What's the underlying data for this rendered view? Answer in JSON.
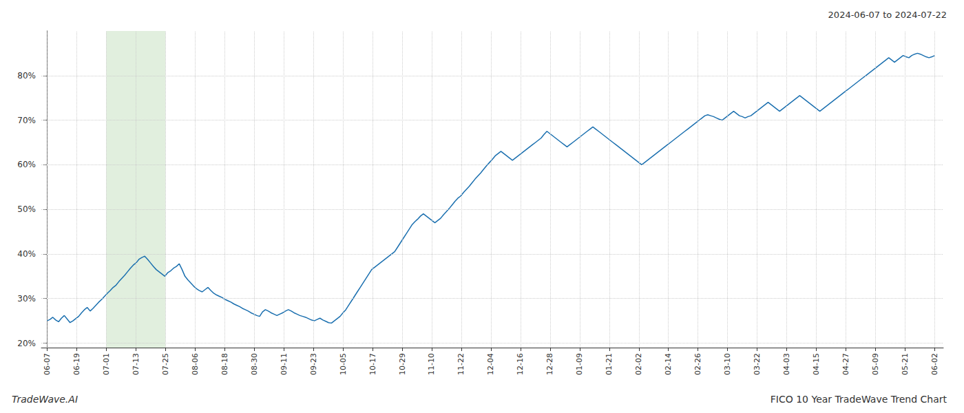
{
  "chart_data": {
    "type": "line",
    "title": "FICO 10 Year TradeWave Trend Chart",
    "subtitle": "2024-06-07 to 2024-07-22",
    "annotations": [
      "TradeWave.AI"
    ],
    "color": "#1a6faf",
    "grid": true,
    "highlight": {
      "start": 20.6,
      "end": 41.2,
      "color": "#d4e8d0"
    },
    "xlim": [
      -2,
      312
    ],
    "xticks": [
      {
        "value": 0,
        "label": "06-07"
      },
      {
        "value": 10.3,
        "label": "06-19"
      },
      {
        "value": 20.6,
        "label": "07-01"
      },
      {
        "value": 30.9,
        "label": "07-13"
      },
      {
        "value": 41.2,
        "label": "07-25"
      },
      {
        "value": 51.5,
        "label": "08-06"
      },
      {
        "value": 61.8,
        "label": "08-18"
      },
      {
        "value": 72.1,
        "label": "08-30"
      },
      {
        "value": 82.4,
        "label": "09-11"
      },
      {
        "value": 92.7,
        "label": "09-23"
      },
      {
        "value": 103,
        "label": "10-05"
      },
      {
        "value": 113.3,
        "label": "10-17"
      },
      {
        "value": 123.6,
        "label": "10-29"
      },
      {
        "value": 133.9,
        "label": "11-10"
      },
      {
        "value": 144.2,
        "label": "11-22"
      },
      {
        "value": 154.5,
        "label": "12-04"
      },
      {
        "value": 164.8,
        "label": "12-16"
      },
      {
        "value": 175.1,
        "label": "12-28"
      },
      {
        "value": 185.4,
        "label": "01-09"
      },
      {
        "value": 195.7,
        "label": "01-21"
      },
      {
        "value": 206,
        "label": "02-02"
      },
      {
        "value": 216.3,
        "label": "02-14"
      },
      {
        "value": 226.6,
        "label": "02-26"
      },
      {
        "value": 236.9,
        "label": "03-10"
      },
      {
        "value": 247.2,
        "label": "03-22"
      },
      {
        "value": 257.5,
        "label": "04-03"
      },
      {
        "value": 267.8,
        "label": "04-15"
      },
      {
        "value": 278.1,
        "label": "04-27"
      },
      {
        "value": 288.4,
        "label": "05-09"
      },
      {
        "value": 298.7,
        "label": "05-21"
      },
      {
        "value": 309,
        "label": "06-02"
      }
    ],
    "ylim": [
      19,
      90
    ],
    "yticks": [
      {
        "value": 20,
        "label": "20%"
      },
      {
        "value": 30,
        "label": "30%"
      },
      {
        "value": 40,
        "label": "40%"
      },
      {
        "value": 50,
        "label": "50%"
      },
      {
        "value": 60,
        "label": "60%"
      },
      {
        "value": 70,
        "label": "70%"
      },
      {
        "value": 80,
        "label": "80%"
      }
    ],
    "x": [
      0,
      1,
      2,
      3,
      4,
      5,
      6,
      7,
      8,
      9,
      10,
      11,
      12,
      13,
      14,
      15,
      16,
      17,
      18,
      19,
      20,
      21,
      22,
      23,
      24,
      25,
      26,
      27,
      28,
      29,
      30,
      31,
      32,
      33,
      34,
      35,
      36,
      37,
      38,
      39,
      40,
      41,
      42,
      43,
      44,
      45,
      46,
      47,
      48,
      49,
      50,
      51,
      52,
      53,
      54,
      55,
      56,
      57,
      58,
      59,
      60,
      61,
      62,
      63,
      64,
      65,
      66,
      67,
      68,
      69,
      70,
      71,
      72,
      73,
      74,
      75,
      76,
      77,
      78,
      79,
      80,
      81,
      82,
      83,
      84,
      85,
      86,
      87,
      88,
      89,
      90,
      91,
      92,
      93,
      94,
      95,
      96,
      97,
      98,
      99,
      100,
      101,
      102,
      103,
      104,
      105,
      106,
      107,
      108,
      109,
      110,
      111,
      112,
      113,
      114,
      115,
      116,
      117,
      118,
      119,
      120,
      121,
      122,
      123,
      124,
      125,
      126,
      127,
      128,
      129,
      130,
      131,
      132,
      133,
      134,
      135,
      136,
      137,
      138,
      139,
      140,
      141,
      142,
      143,
      144,
      145,
      146,
      147,
      148,
      149,
      150,
      151,
      152,
      153,
      154,
      155,
      156,
      157,
      158,
      159,
      160,
      161,
      162,
      163,
      164,
      165,
      166,
      167,
      168,
      169,
      170,
      171,
      172,
      173,
      174,
      175,
      176,
      177,
      178,
      179,
      180,
      181,
      182,
      183,
      184,
      185,
      186,
      187,
      188,
      189,
      190,
      191,
      192,
      193,
      194,
      195,
      196,
      197,
      198,
      199,
      200,
      201,
      202,
      203,
      204,
      205,
      206,
      207,
      208,
      209,
      210,
      211,
      212,
      213,
      214,
      215,
      216,
      217,
      218,
      219,
      220,
      221,
      222,
      223,
      224,
      225,
      226,
      227,
      228,
      229,
      230,
      231,
      232,
      233,
      234,
      235,
      236,
      237,
      238,
      239,
      240,
      241,
      242,
      243,
      244,
      245,
      246,
      247,
      248,
      249,
      250,
      251,
      252,
      253,
      254,
      255,
      256,
      257,
      258,
      259,
      260,
      261,
      262,
      263,
      264,
      265,
      266,
      267,
      268,
      269,
      270,
      271,
      272,
      273,
      274,
      275,
      276,
      277,
      278,
      279,
      280,
      281,
      282,
      283,
      284,
      285,
      286,
      287,
      288,
      289,
      290,
      291,
      292,
      293,
      294,
      295,
      296,
      297,
      298,
      299,
      300,
      301,
      302,
      303,
      304,
      305,
      306,
      307,
      308,
      309
    ],
    "values": [
      25.0,
      25.3,
      25.8,
      25.2,
      24.8,
      25.6,
      26.2,
      25.4,
      24.6,
      25.0,
      25.5,
      26.0,
      26.8,
      27.5,
      28.0,
      27.2,
      27.8,
      28.5,
      29.2,
      29.8,
      30.5,
      31.2,
      31.8,
      32.5,
      33.0,
      33.8,
      34.5,
      35.2,
      36.0,
      36.8,
      37.5,
      38.0,
      38.8,
      39.2,
      39.5,
      38.8,
      38.0,
      37.2,
      36.5,
      36.0,
      35.5,
      35.0,
      35.8,
      36.2,
      36.8,
      37.2,
      37.8,
      36.5,
      35.0,
      34.2,
      33.5,
      32.8,
      32.2,
      31.8,
      31.5,
      32.0,
      32.5,
      31.8,
      31.2,
      30.8,
      30.5,
      30.2,
      29.8,
      29.5,
      29.2,
      28.8,
      28.5,
      28.2,
      27.8,
      27.5,
      27.2,
      26.8,
      26.5,
      26.2,
      26.0,
      27.0,
      27.5,
      27.2,
      26.8,
      26.5,
      26.2,
      26.5,
      26.8,
      27.2,
      27.5,
      27.2,
      26.8,
      26.5,
      26.2,
      26.0,
      25.8,
      25.5,
      25.2,
      25.0,
      25.3,
      25.6,
      25.2,
      24.9,
      24.6,
      24.5,
      25.0,
      25.5,
      26.0,
      26.8,
      27.5,
      28.5,
      29.5,
      30.5,
      31.5,
      32.5,
      33.5,
      34.5,
      35.5,
      36.5,
      37.0,
      37.5,
      38.0,
      38.5,
      39.0,
      39.5,
      40.0,
      40.5,
      41.5,
      42.5,
      43.5,
      44.5,
      45.5,
      46.5,
      47.2,
      47.8,
      48.5,
      49.0,
      48.5,
      48.0,
      47.5,
      47.0,
      47.5,
      48.0,
      48.8,
      49.5,
      50.2,
      51.0,
      51.8,
      52.5,
      53.0,
      53.8,
      54.5,
      55.2,
      56.0,
      56.8,
      57.5,
      58.2,
      59.0,
      59.8,
      60.5,
      61.2,
      62.0,
      62.5,
      63.0,
      62.5,
      62.0,
      61.5,
      61.0,
      61.5,
      62.0,
      62.5,
      63.0,
      63.5,
      64.0,
      64.5,
      65.0,
      65.5,
      66.0,
      66.8,
      67.5,
      67.0,
      66.5,
      66.0,
      65.5,
      65.0,
      64.5,
      64.0,
      64.5,
      65.0,
      65.5,
      66.0,
      66.5,
      67.0,
      67.5,
      68.0,
      68.5,
      68.0,
      67.5,
      67.0,
      66.5,
      66.0,
      65.5,
      65.0,
      64.5,
      64.0,
      63.5,
      63.0,
      62.5,
      62.0,
      61.5,
      61.0,
      60.5,
      60.0,
      60.5,
      61.0,
      61.5,
      62.0,
      62.5,
      63.0,
      63.5,
      64.0,
      64.5,
      65.0,
      65.5,
      66.0,
      66.5,
      67.0,
      67.5,
      68.0,
      68.5,
      69.0,
      69.5,
      70.0,
      70.5,
      71.0,
      71.2,
      71.0,
      70.8,
      70.5,
      70.2,
      70.0,
      70.5,
      71.0,
      71.5,
      72.0,
      71.5,
      71.0,
      70.8,
      70.5,
      70.8,
      71.0,
      71.5,
      72.0,
      72.5,
      73.0,
      73.5,
      74.0,
      73.5,
      73.0,
      72.5,
      72.0,
      72.5,
      73.0,
      73.5,
      74.0,
      74.5,
      75.0,
      75.5,
      75.0,
      74.5,
      74.0,
      73.5,
      73.0,
      72.5,
      72.0,
      72.5,
      73.0,
      73.5,
      74.0,
      74.5,
      75.0,
      75.5,
      76.0,
      76.5,
      77.0,
      77.5,
      78.0,
      78.5,
      79.0,
      79.5,
      80.0,
      80.5,
      81.0,
      81.5,
      82.0,
      82.5,
      83.0,
      83.5,
      84.0,
      83.5,
      83.0,
      83.5,
      84.0,
      84.5,
      84.2,
      84.0,
      84.5,
      84.8,
      85.0,
      84.8,
      84.5,
      84.2,
      84.0,
      84.2,
      84.5
    ]
  }
}
